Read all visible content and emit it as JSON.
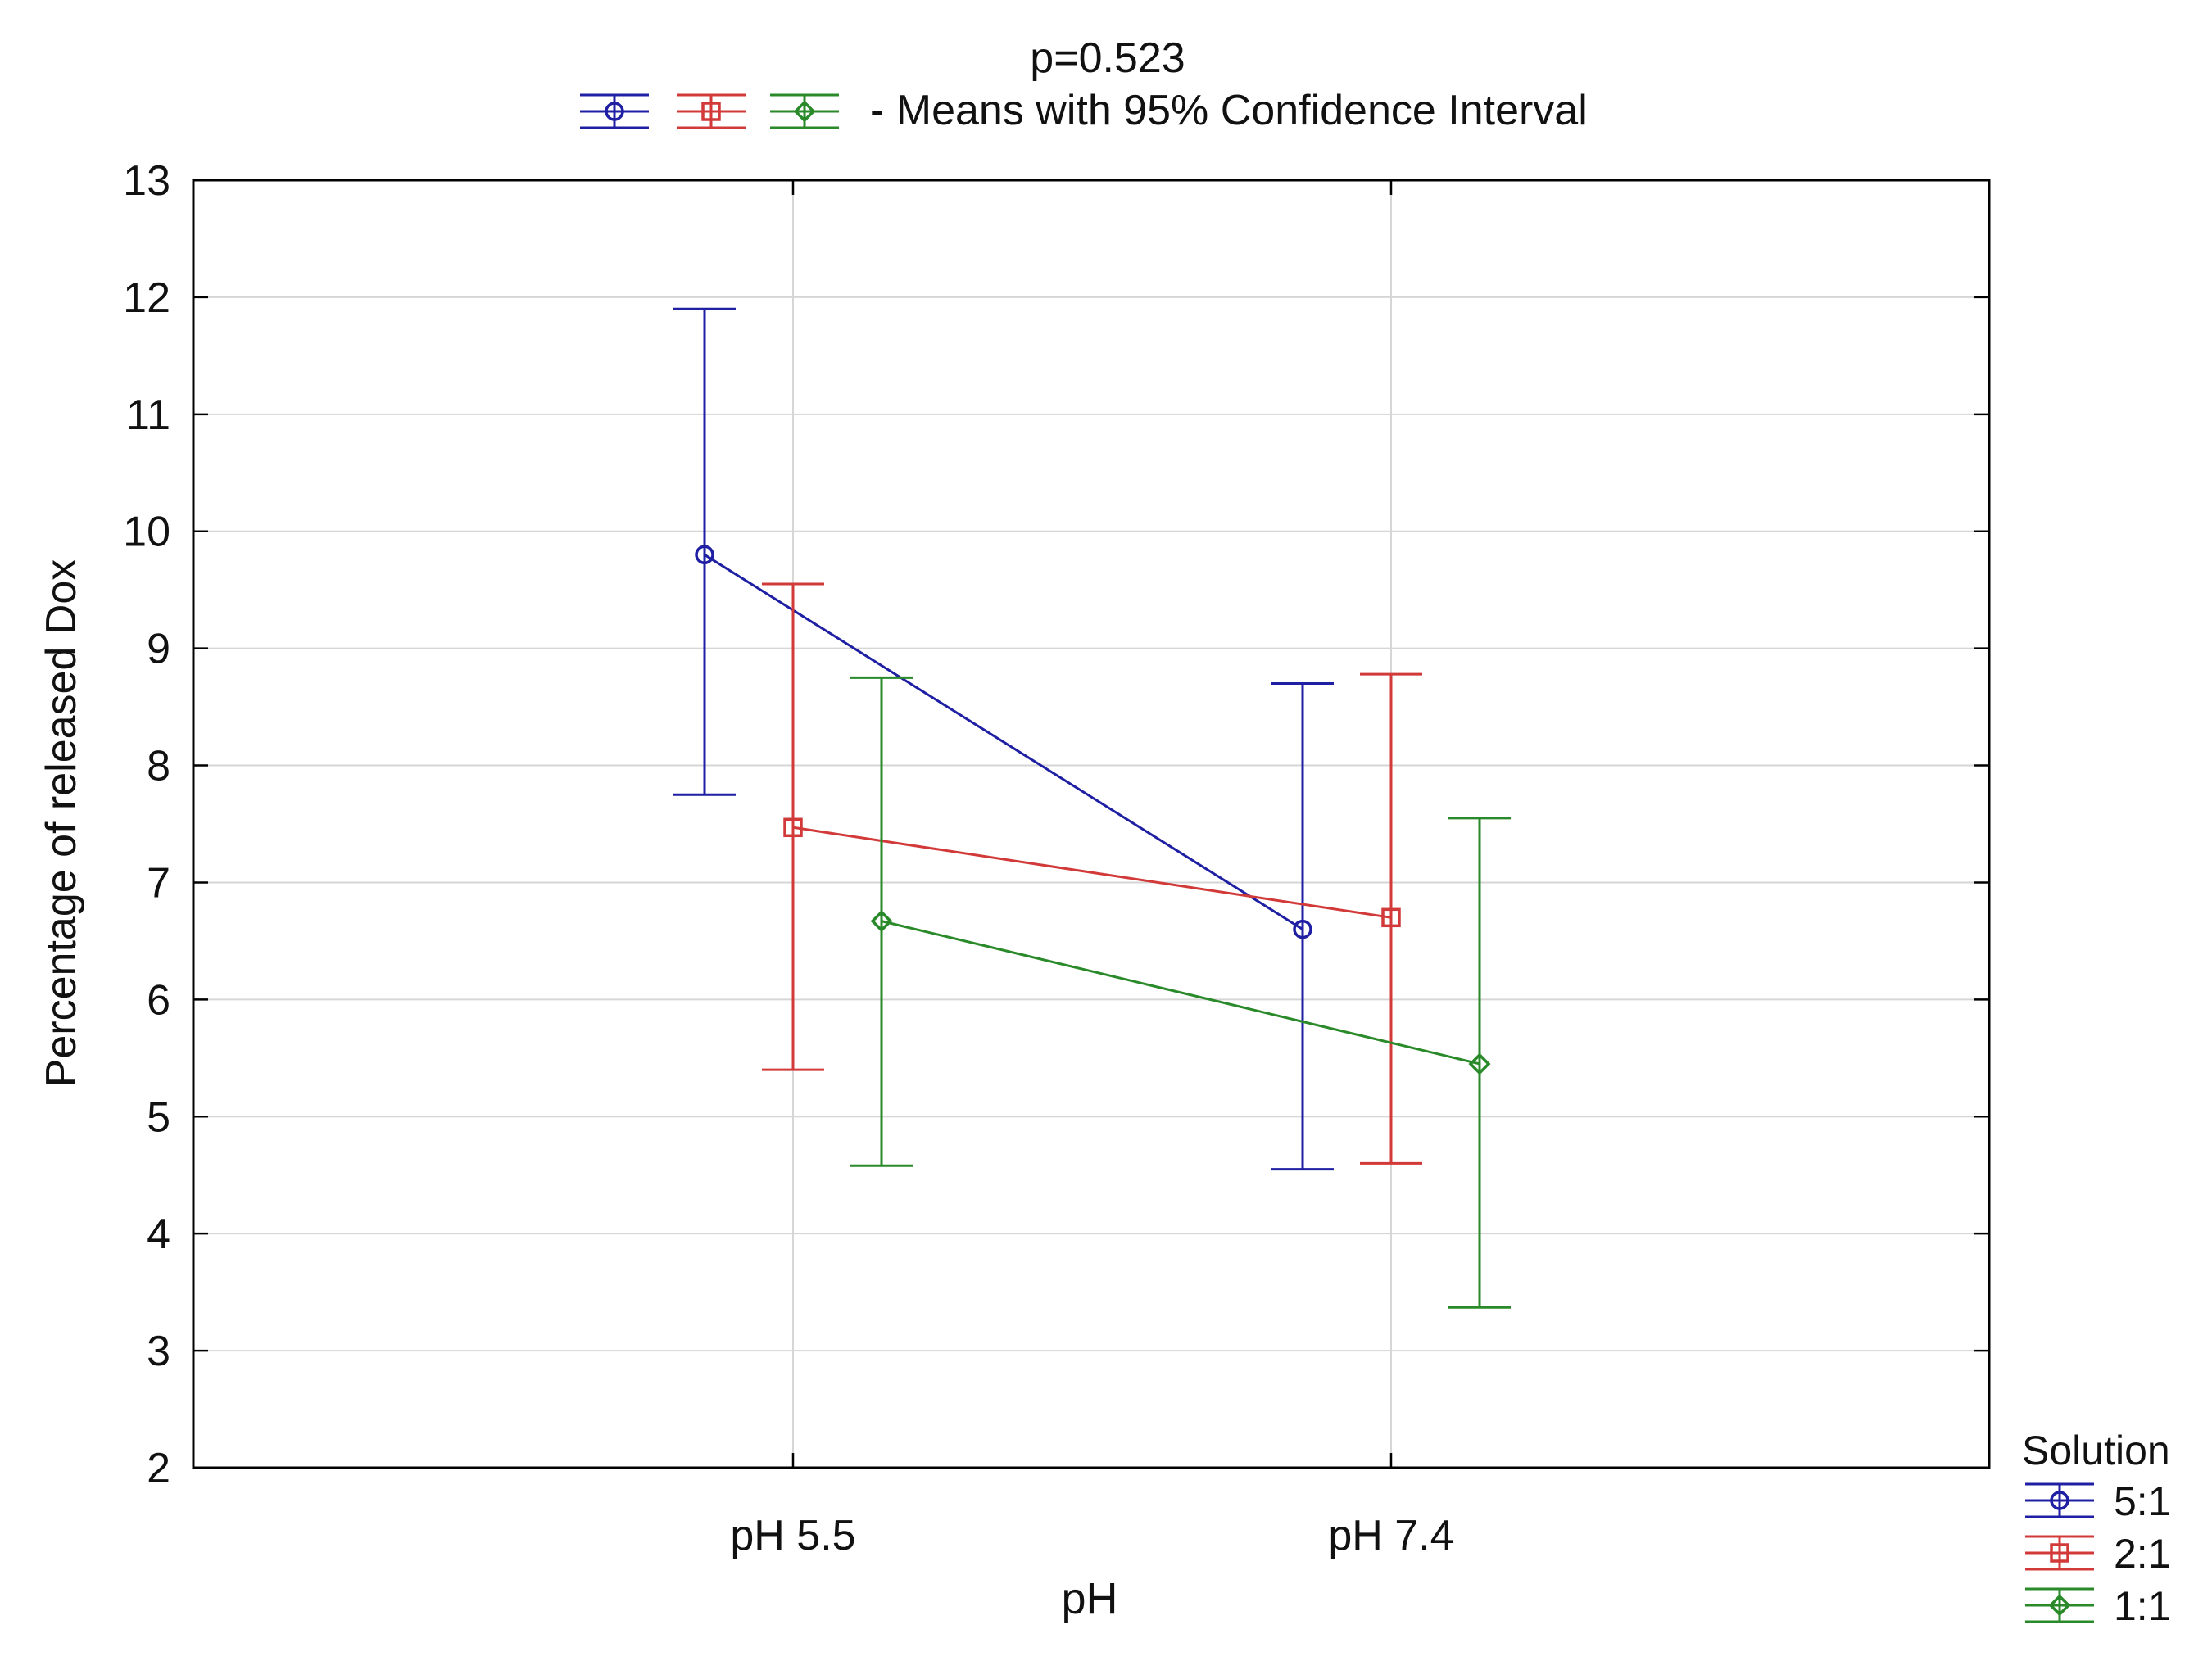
{
  "chart_data": {
    "type": "line",
    "title": "p=0.523",
    "subtitle": "- Means with 95% Confidence Interval",
    "xlabel": "pH",
    "ylabel": "Percentage of released Dox",
    "categories": [
      "pH 5.5",
      "pH 7.4"
    ],
    "ylim": [
      2,
      13
    ],
    "yticks": [
      2,
      3,
      4,
      5,
      6,
      7,
      8,
      9,
      10,
      11,
      12,
      13
    ],
    "grid": true,
    "legend": {
      "title": "Solution",
      "position": "bottom-right"
    },
    "series": [
      {
        "name": "5:1",
        "color": "#1f1fa3",
        "marker": "circle",
        "values": [
          9.8,
          6.6
        ],
        "ci_low": [
          7.75,
          4.55
        ],
        "ci_high": [
          11.9,
          8.7
        ]
      },
      {
        "name": "2:1",
        "color": "#d23a3a",
        "marker": "square",
        "values": [
          7.47,
          6.7
        ],
        "ci_low": [
          5.4,
          4.6
        ],
        "ci_high": [
          9.55,
          8.78
        ]
      },
      {
        "name": "1:1",
        "color": "#2a8a2a",
        "marker": "diamond",
        "values": [
          6.67,
          5.45
        ],
        "ci_low": [
          4.58,
          3.37
        ],
        "ci_high": [
          8.75,
          7.55
        ]
      }
    ]
  }
}
